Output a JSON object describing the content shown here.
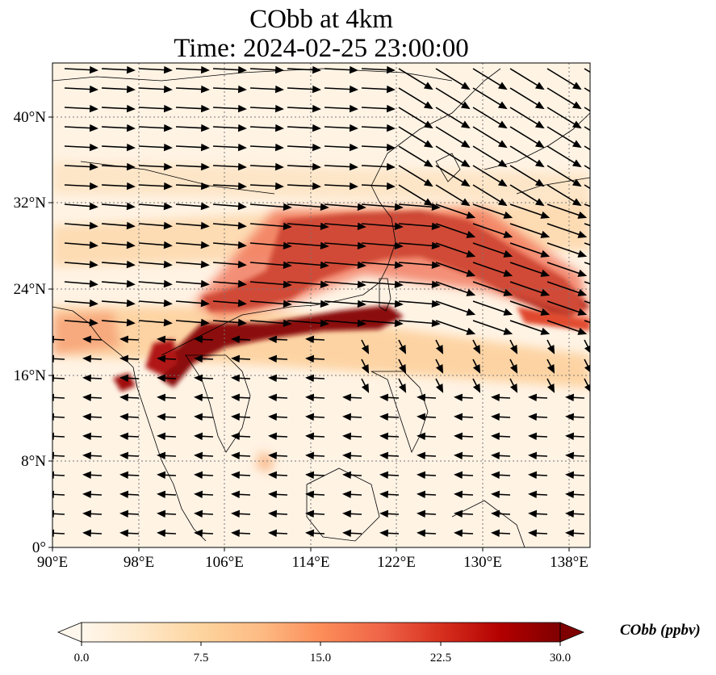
{
  "title": {
    "line1": "CObb at 4km",
    "line2": "Time: 2024-02-25 23:00:00"
  },
  "map": {
    "lon_range": [
      90,
      140
    ],
    "lat_range": [
      0,
      45
    ],
    "lon_ticks": [
      "90°E",
      "98°E",
      "106°E",
      "114°E",
      "122°E",
      "130°E",
      "138°E"
    ],
    "lat_ticks": [
      "0°",
      "8°N",
      "16°N",
      "24°N",
      "32°N",
      "40°N"
    ],
    "gridlines": "dotted",
    "field": "CObb",
    "plume_color": "#7f0000",
    "background_color": "#fff5eb"
  },
  "colorbar": {
    "label": "CObb (ppbv)",
    "ticks": [
      "0.0",
      "7.5",
      "15.0",
      "22.5",
      "30.0"
    ],
    "range": [
      0,
      30
    ],
    "extend": "both",
    "colormap": "OrRd",
    "stops": [
      "#fff7ec",
      "#fee8c8",
      "#fdd49e",
      "#fdbb84",
      "#fc8d59",
      "#ef6548",
      "#d7301f",
      "#b30000",
      "#7f0000"
    ]
  }
}
